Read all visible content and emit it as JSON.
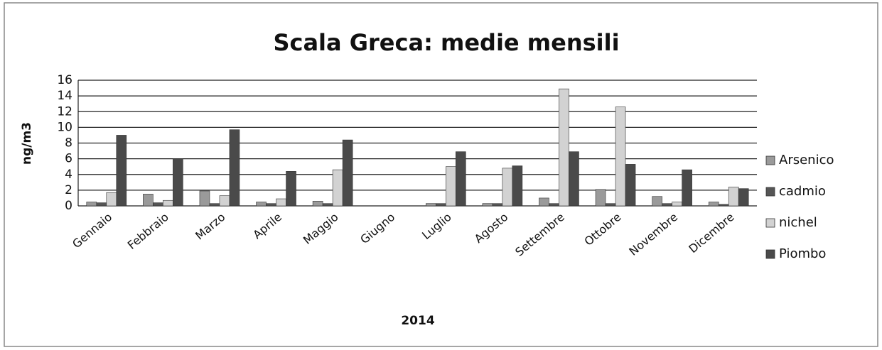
{
  "chart_data": {
    "type": "bar",
    "title": "Scala Greca: medie mensili",
    "x_label": "2014",
    "y_label": "ng/m3",
    "categories": [
      "Gennaio",
      "Febbraio",
      "Marzo",
      "Aprile",
      "Maggio",
      "Giugno",
      "Luglio",
      "Agosto",
      "Settembre",
      "Ottobre",
      "Novembre",
      "Dicembre"
    ],
    "series": [
      {
        "name": "Arsenico",
        "color": "#9a9a9a",
        "values": [
          0.5,
          1.5,
          1.9,
          0.5,
          0.6,
          null,
          0.3,
          0.3,
          1.0,
          2.1,
          1.2,
          0.5
        ]
      },
      {
        "name": "cadmio",
        "color": "#555555",
        "values": [
          0.4,
          0.4,
          0.3,
          0.3,
          0.3,
          null,
          0.3,
          0.3,
          0.3,
          0.3,
          0.3,
          0.2
        ]
      },
      {
        "name": "nichel",
        "color": "#d2d2d2",
        "values": [
          1.7,
          0.7,
          1.3,
          0.9,
          4.6,
          null,
          5.0,
          4.8,
          14.9,
          12.6,
          0.5,
          2.4
        ]
      },
      {
        "name": "Piombo",
        "color": "#4a4a4a",
        "values": [
          9.0,
          6.0,
          9.7,
          4.4,
          8.4,
          null,
          6.9,
          5.1,
          6.9,
          5.3,
          4.6,
          2.2
        ]
      }
    ],
    "ylim": [
      0,
      16
    ],
    "yticks": [
      0,
      2,
      4,
      6,
      8,
      10,
      12,
      14,
      16
    ],
    "grid": true,
    "legend": "right"
  }
}
